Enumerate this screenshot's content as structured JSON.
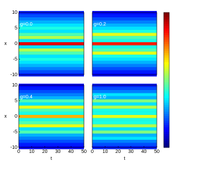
{
  "chart_data": [
    {
      "type": "heatmap",
      "annotation": "g=0.0",
      "ylabel": "x",
      "colormap": "jet",
      "zlim": [
        0,
        1
      ],
      "xlim": [
        0,
        50
      ],
      "ylim": [
        -10,
        10
      ],
      "yticks": [
        -10,
        -5,
        0,
        5,
        10
      ],
      "y": [
        -10,
        -9,
        -8,
        -7,
        -6,
        -5,
        -4,
        -3,
        -2,
        -1,
        0,
        1,
        2,
        3,
        4,
        5,
        6,
        7,
        8,
        9,
        10
      ],
      "values": [
        0.15,
        0.2,
        0.25,
        0.3,
        0.35,
        0.4,
        0.35,
        0.45,
        0.55,
        0.35,
        0.9,
        0.35,
        0.55,
        0.45,
        0.35,
        0.4,
        0.35,
        0.3,
        0.25,
        0.2,
        0.15
      ]
    },
    {
      "type": "heatmap",
      "annotation": "g=0.2",
      "colormap": "jet",
      "zlim": [
        0,
        1
      ],
      "xlim": [
        0,
        50
      ],
      "ylim": [
        -10,
        10
      ],
      "y": [
        -10,
        -9,
        -8,
        -7,
        -6,
        -5,
        -4,
        -3,
        -2,
        -1,
        0,
        1,
        2,
        3,
        4,
        5,
        6,
        7,
        8,
        9,
        10
      ],
      "values": [
        0.12,
        0.15,
        0.2,
        0.25,
        0.3,
        0.35,
        0.4,
        0.6,
        0.45,
        0.4,
        0.85,
        0.4,
        0.45,
        0.6,
        0.4,
        0.35,
        0.3,
        0.25,
        0.2,
        0.15,
        0.12
      ]
    },
    {
      "type": "heatmap",
      "annotation": "g=0.4",
      "xlabel": "t",
      "ylabel": "x",
      "colormap": "jet",
      "zlim": [
        0,
        1
      ],
      "xlim": [
        0,
        50
      ],
      "ylim": [
        -10,
        10
      ],
      "xticks": [
        0,
        10,
        20,
        30,
        40,
        50
      ],
      "yticks": [
        -10,
        -5,
        0,
        5,
        10
      ],
      "y": [
        -10,
        -9,
        -8,
        -7,
        -6,
        -5,
        -4,
        -3,
        -2,
        -1,
        0,
        1,
        2,
        3,
        4,
        5,
        6,
        7,
        8,
        9,
        10
      ],
      "values": [
        0.12,
        0.15,
        0.2,
        0.25,
        0.3,
        0.45,
        0.35,
        0.6,
        0.45,
        0.4,
        0.7,
        0.4,
        0.45,
        0.6,
        0.35,
        0.45,
        0.3,
        0.25,
        0.2,
        0.15,
        0.12
      ]
    },
    {
      "type": "heatmap",
      "annotation": "g=1.0",
      "xlabel": "t",
      "colormap": "jet",
      "zlim": [
        0,
        1
      ],
      "xlim": [
        0,
        50
      ],
      "ylim": [
        -10,
        10
      ],
      "xticks": [
        0,
        10,
        20,
        30,
        40,
        50
      ],
      "y": [
        -10,
        -9,
        -8,
        -7,
        -6,
        -5,
        -4,
        -3,
        -2,
        -1,
        0,
        1,
        2,
        3,
        4,
        5,
        6,
        7,
        8,
        9,
        10
      ],
      "values": [
        0.15,
        0.2,
        0.25,
        0.35,
        0.3,
        0.5,
        0.35,
        0.55,
        0.4,
        0.4,
        0.6,
        0.4,
        0.4,
        0.55,
        0.35,
        0.5,
        0.3,
        0.35,
        0.25,
        0.2,
        0.15
      ]
    }
  ]
}
